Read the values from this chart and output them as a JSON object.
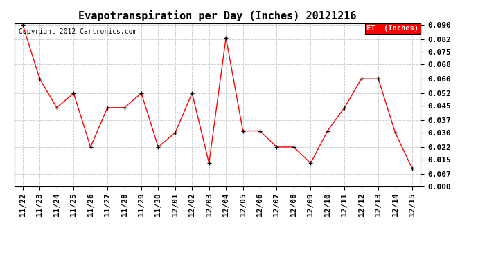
{
  "title": "Evapotranspiration per Day (Inches) 20121216",
  "copyright_text": "Copyright 2012 Cartronics.com",
  "legend_label": "ET  (Inches)",
  "legend_bg": "#ff0000",
  "legend_text_color": "#ffffff",
  "dates": [
    "11/22",
    "11/23",
    "11/24",
    "11/25",
    "11/26",
    "11/27",
    "11/28",
    "11/29",
    "11/30",
    "12/01",
    "12/02",
    "12/03",
    "12/04",
    "12/05",
    "12/06",
    "12/07",
    "12/08",
    "12/09",
    "12/10",
    "12/11",
    "12/12",
    "12/13",
    "12/14",
    "12/15"
  ],
  "values": [
    0.09,
    0.06,
    0.044,
    0.052,
    0.022,
    0.044,
    0.044,
    0.052,
    0.022,
    0.03,
    0.052,
    0.013,
    0.083,
    0.031,
    0.031,
    0.022,
    0.022,
    0.013,
    0.031,
    0.044,
    0.06,
    0.06,
    0.03,
    0.01
  ],
  "line_color": "#ff0000",
  "marker_color": "#000000",
  "bg_color": "#ffffff",
  "grid_color": "#c8c8c8",
  "ylim": [
    0.0,
    0.09
  ],
  "yticks": [
    0.0,
    0.007,
    0.015,
    0.022,
    0.03,
    0.037,
    0.045,
    0.052,
    0.06,
    0.068,
    0.075,
    0.082,
    0.09
  ],
  "title_fontsize": 11,
  "tick_fontsize": 8,
  "copyright_fontsize": 7
}
